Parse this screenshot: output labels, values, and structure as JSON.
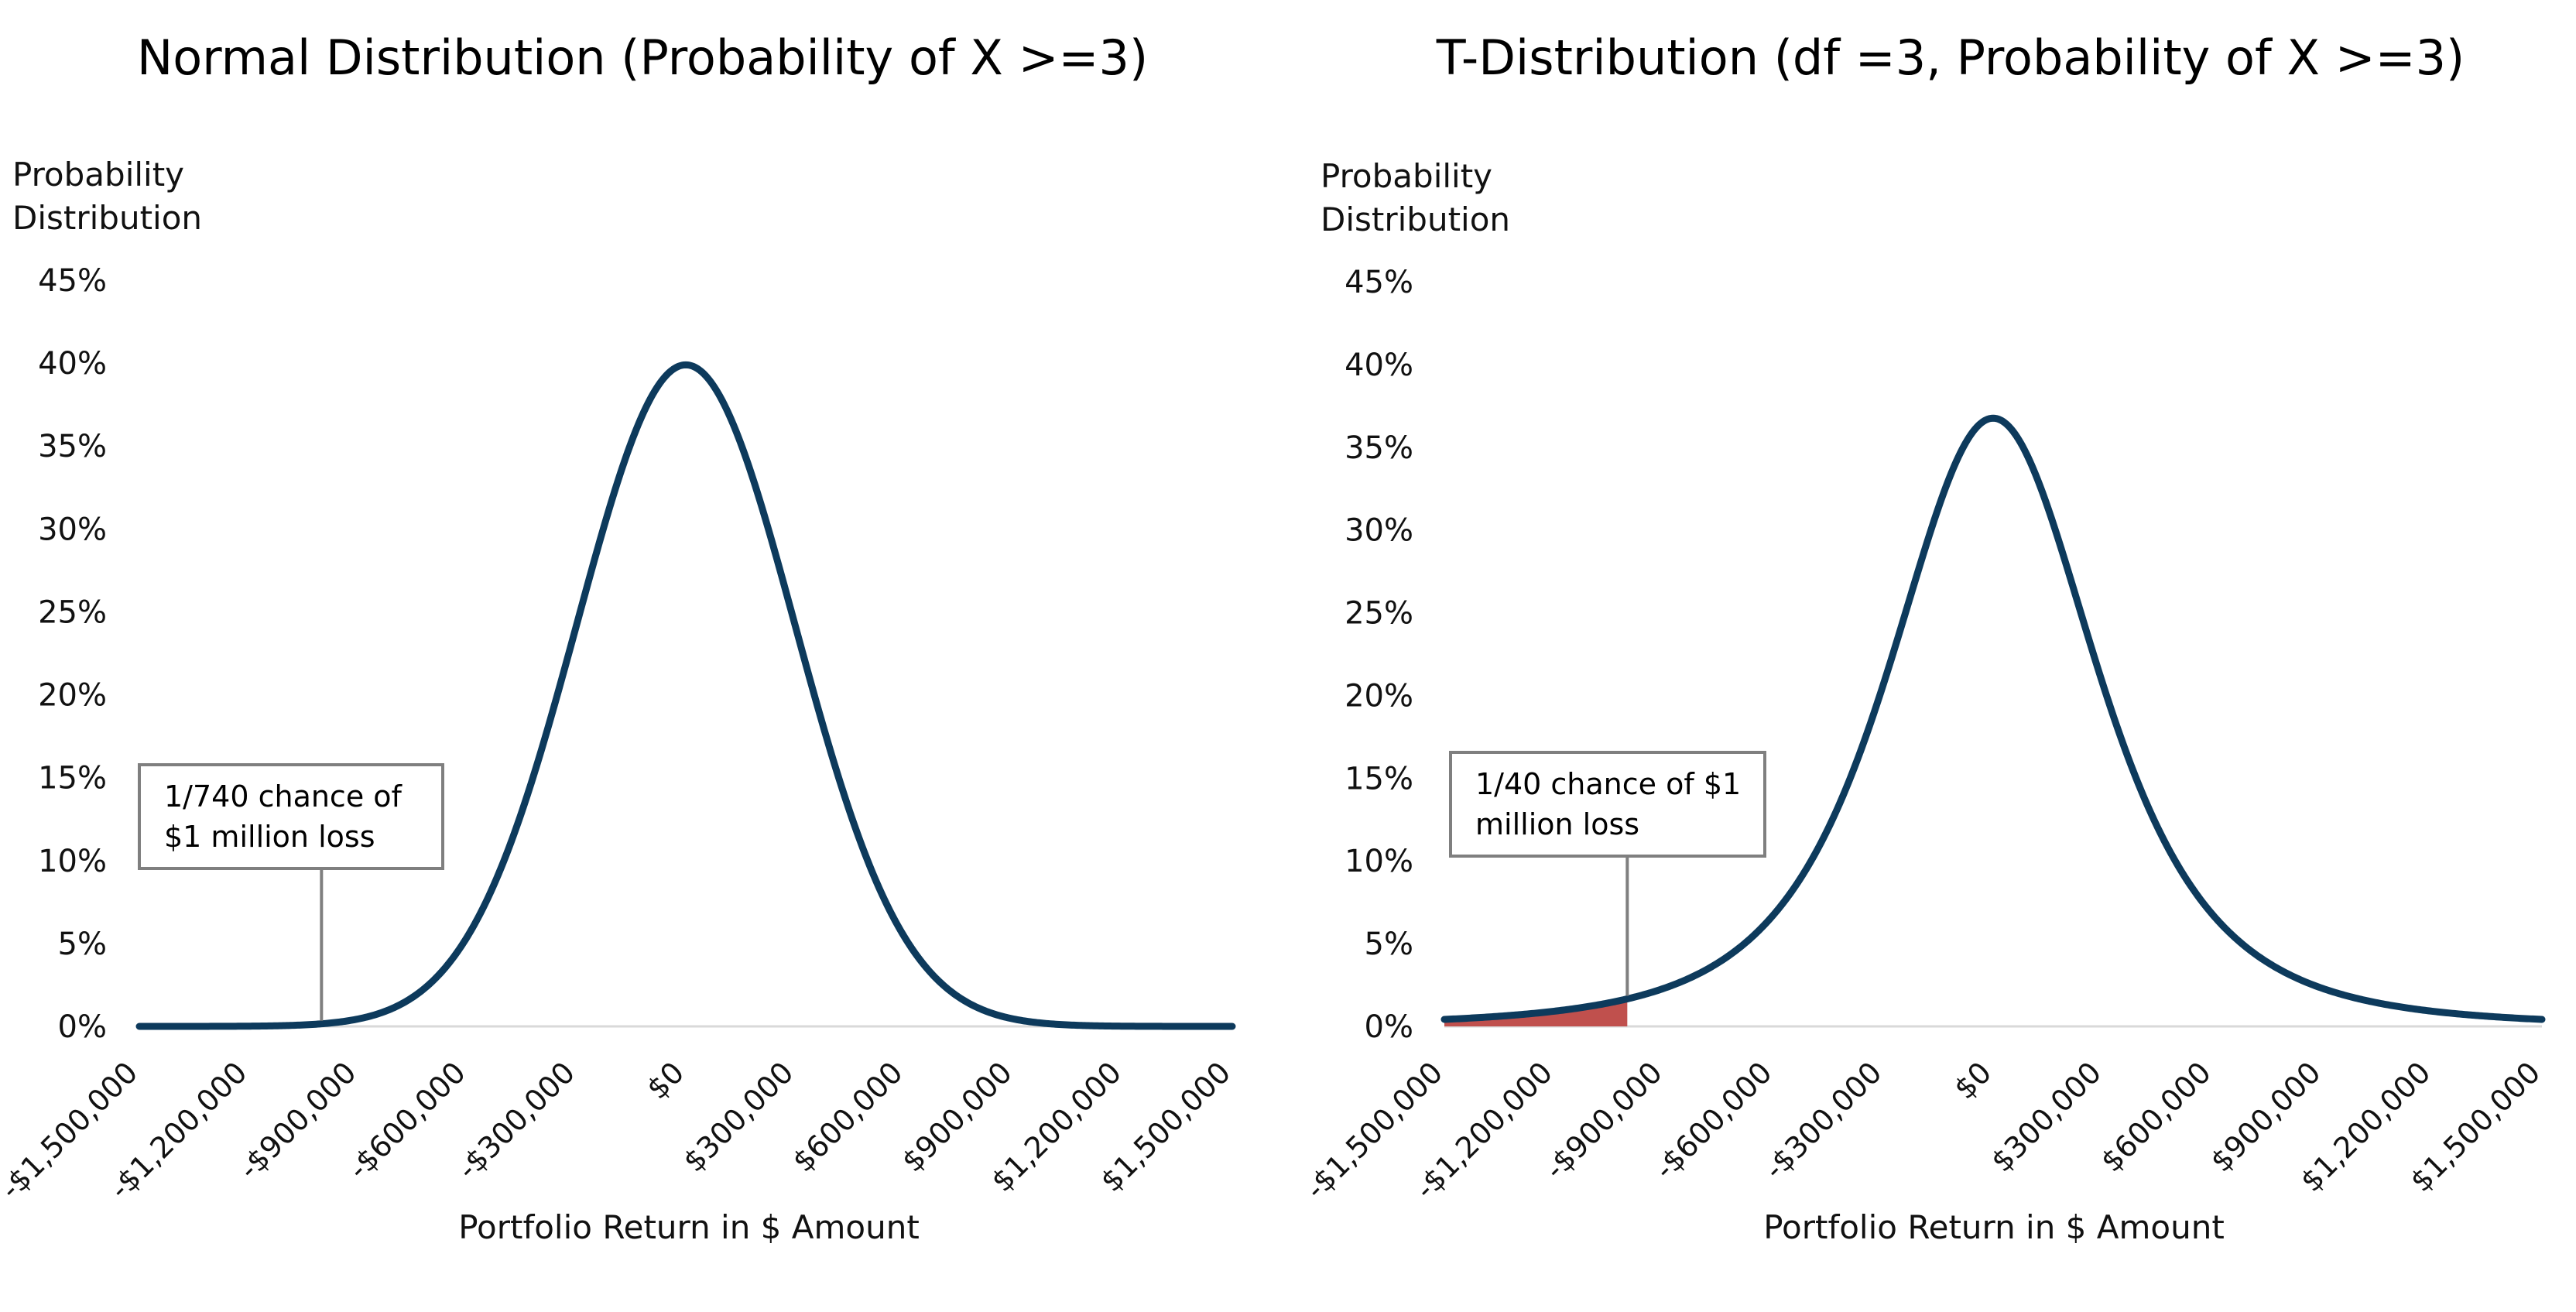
{
  "chart_data": [
    {
      "type": "line",
      "title": "Normal Distribution (Probability of X >=3)",
      "ylabel_lines": [
        "Probability",
        "Distribution"
      ],
      "xlabel": "Portfolio Return in $ Amount",
      "xlim": [
        -1500000,
        1500000
      ],
      "ylim": [
        0,
        0.45
      ],
      "x_ticks": [
        -1500000,
        -1200000,
        -900000,
        -600000,
        -300000,
        0,
        300000,
        600000,
        900000,
        1200000,
        1500000
      ],
      "x_tick_labels": [
        "-$1,500,000",
        "-$1,200,000",
        "-$900,000",
        "-$600,000",
        "-$300,000",
        "$0",
        "$300,000",
        "$600,000",
        "$900,000",
        "$1,200,000",
        "$1,500,000"
      ],
      "y_ticks": [
        0,
        0.05,
        0.1,
        0.15,
        0.2,
        0.25,
        0.3,
        0.35,
        0.4,
        0.45
      ],
      "y_tick_labels": [
        "0%",
        "5%",
        "10%",
        "15%",
        "20%",
        "25%",
        "30%",
        "35%",
        "40%",
        "45%"
      ],
      "series": [
        {
          "distribution": "normal",
          "scale": 300000,
          "x": [
            -1500000,
            -1200000,
            -900000,
            -600000,
            -300000,
            0,
            300000,
            600000,
            900000,
            1200000,
            1500000
          ],
          "values": [
            0.0,
            0.0001,
            0.0044,
            0.054,
            0.242,
            0.3989,
            0.242,
            0.054,
            0.0044,
            0.0001,
            0.0
          ],
          "color": "#0d3a5c"
        }
      ],
      "shaded_tail": null,
      "annotation": {
        "lines": [
          "1/740 chance of",
          "$1 million loss"
        ],
        "points_to_x": -1000000
      }
    },
    {
      "type": "line",
      "title": "T-Distribution (df =3, Probability of X >=3)",
      "ylabel_lines": [
        "Probability",
        "Distribution"
      ],
      "xlabel": "Portfolio Return in $ Amount",
      "xlim": [
        -1500000,
        1500000
      ],
      "ylim": [
        0,
        0.45
      ],
      "x_ticks": [
        -1500000,
        -1200000,
        -900000,
        -600000,
        -300000,
        0,
        300000,
        600000,
        900000,
        1200000,
        1500000
      ],
      "x_tick_labels": [
        "-$1,500,000",
        "-$1,200,000",
        "-$900,000",
        "-$600,000",
        "-$300,000",
        "$0",
        "$300,000",
        "$600,000",
        "$900,000",
        "$1,200,000",
        "$1,500,000"
      ],
      "y_ticks": [
        0,
        0.05,
        0.1,
        0.15,
        0.2,
        0.25,
        0.3,
        0.35,
        0.4,
        0.45
      ],
      "y_tick_labels": [
        "0%",
        "5%",
        "10%",
        "15%",
        "20%",
        "25%",
        "30%",
        "35%",
        "40%",
        "45%"
      ],
      "series": [
        {
          "distribution": "t",
          "df": 3,
          "scale": 300000,
          "x": [
            -1500000,
            -1200000,
            -900000,
            -600000,
            -300000,
            0,
            300000,
            600000,
            900000,
            1200000,
            1500000
          ],
          "values": [
            0.0042,
            0.0092,
            0.023,
            0.0675,
            0.2067,
            0.3676,
            0.2067,
            0.0675,
            0.023,
            0.0092,
            0.0042
          ],
          "color": "#0d3a5c"
        }
      ],
      "shaded_tail": {
        "from_x": -1500000,
        "to_x": -1000000,
        "color": "#c0504d"
      },
      "annotation": {
        "lines": [
          "1/40 chance of $1",
          "million loss"
        ],
        "points_to_x": -1000000
      }
    }
  ]
}
